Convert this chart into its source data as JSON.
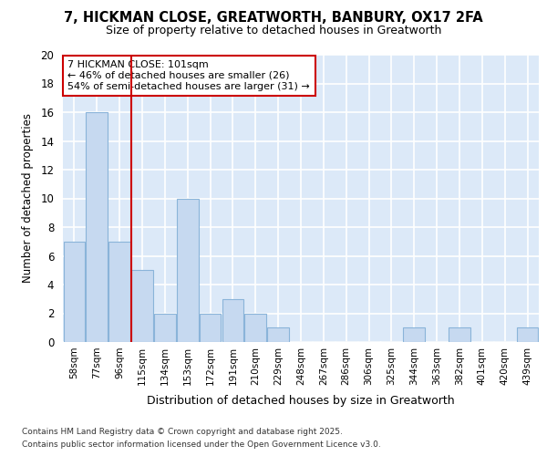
{
  "title1": "7, HICKMAN CLOSE, GREATWORTH, BANBURY, OX17 2FA",
  "title2": "Size of property relative to detached houses in Greatworth",
  "xlabel": "Distribution of detached houses by size in Greatworth",
  "ylabel": "Number of detached properties",
  "bins": [
    "58sqm",
    "77sqm",
    "96sqm",
    "115sqm",
    "134sqm",
    "153sqm",
    "172sqm",
    "191sqm",
    "210sqm",
    "229sqm",
    "248sqm",
    "267sqm",
    "286sqm",
    "306sqm",
    "325sqm",
    "344sqm",
    "363sqm",
    "382sqm",
    "401sqm",
    "420sqm",
    "439sqm"
  ],
  "values": [
    7,
    16,
    7,
    5,
    2,
    10,
    2,
    3,
    2,
    1,
    0,
    0,
    0,
    0,
    0,
    1,
    0,
    1,
    0,
    0,
    1
  ],
  "bar_color": "#c6d9f0",
  "bar_edge_color": "#8ab4d9",
  "annotation_box_color": "#cc0000",
  "annotation_text_line1": "7 HICKMAN CLOSE: 101sqm",
  "annotation_text_line2": "← 46% of detached houses are smaller (26)",
  "annotation_text_line3": "54% of semi-detached houses are larger (31) →",
  "red_line_x": 2.5,
  "ylim": [
    0,
    20
  ],
  "yticks": [
    0,
    2,
    4,
    6,
    8,
    10,
    12,
    14,
    16,
    18,
    20
  ],
  "background_color": "#dce9f8",
  "grid_color": "#ffffff",
  "fig_bg_color": "#ffffff",
  "footer1": "Contains HM Land Registry data © Crown copyright and database right 2025.",
  "footer2": "Contains public sector information licensed under the Open Government Licence v3.0."
}
